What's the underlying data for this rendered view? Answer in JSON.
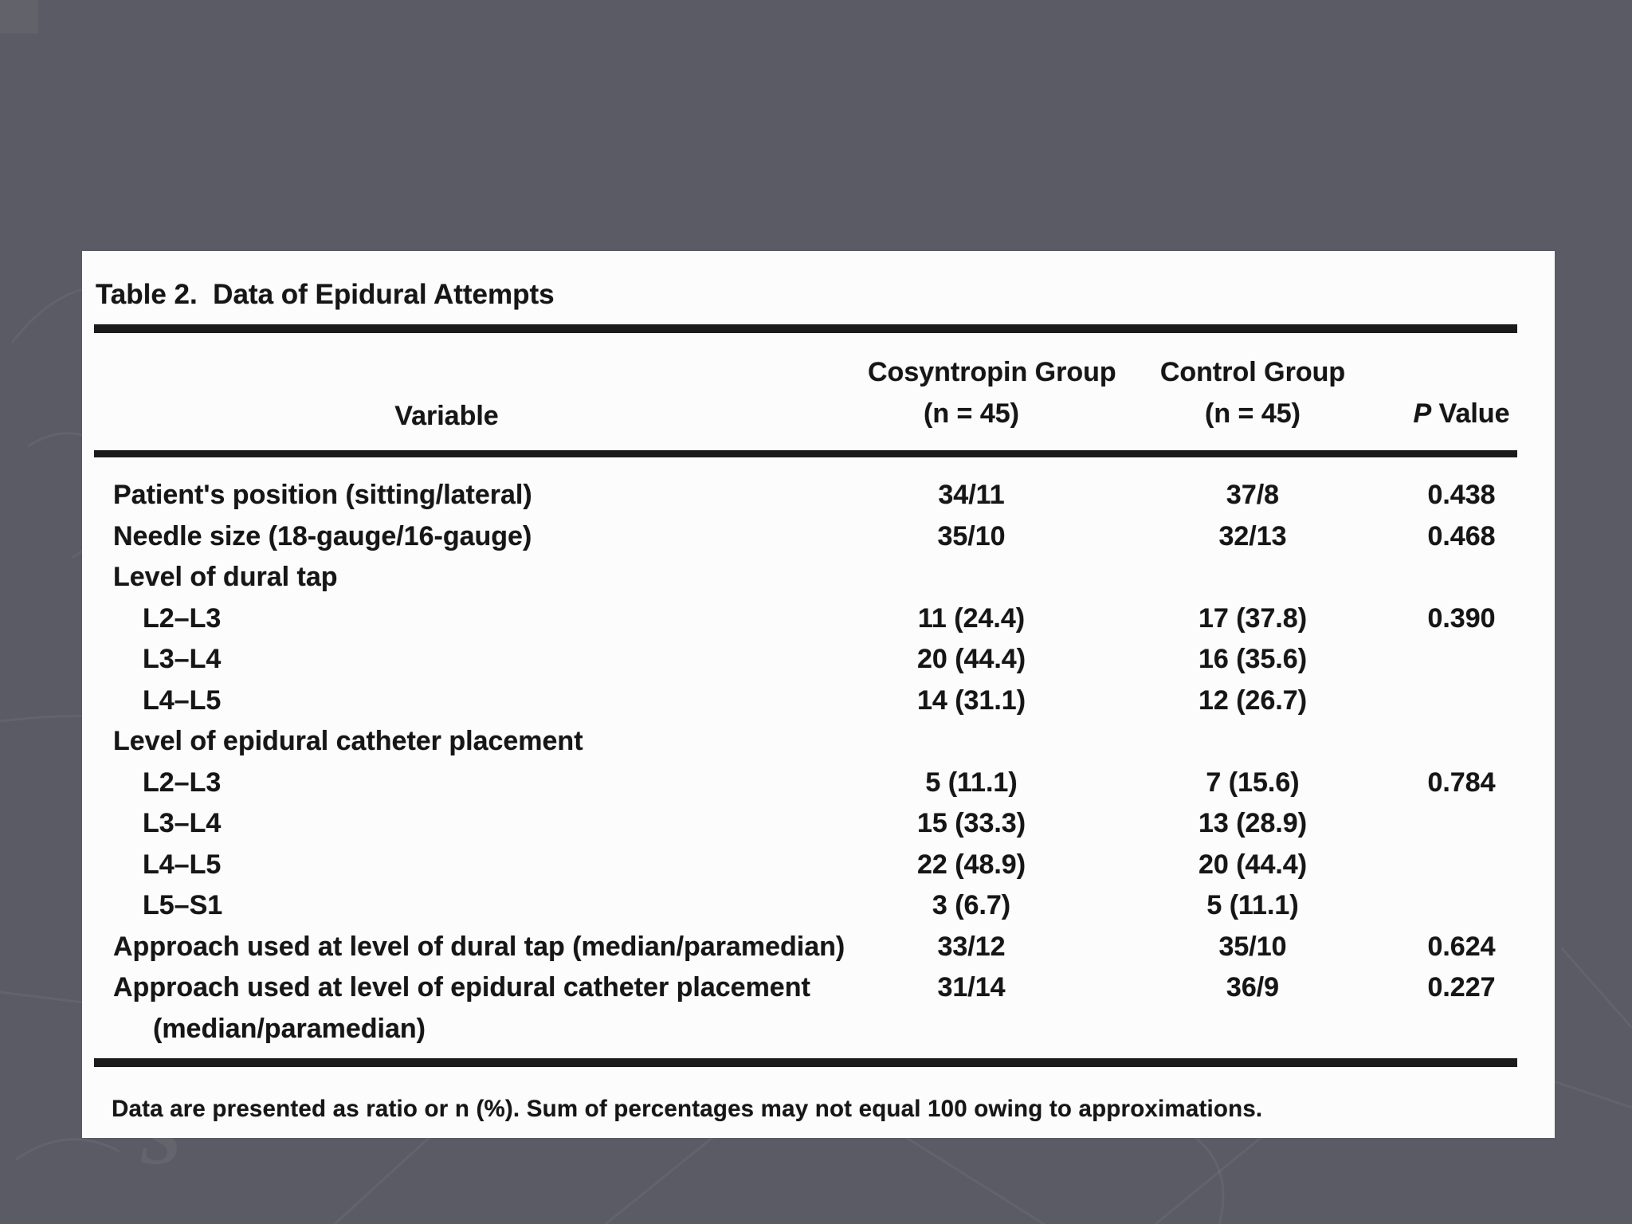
{
  "page": {
    "background_color": "#5a5b64",
    "panel_color": "#fcfcfd",
    "text_color": "#161616",
    "rule_color": "#1b1b1b"
  },
  "table": {
    "title": "Table 2.  Data of Epidural Attempts",
    "header": {
      "variable": "Variable",
      "group1_line1": "Cosyntropin Group",
      "group1_line2": "(n = 45)",
      "group2_line1": "Control Group",
      "group2_line2": "(n = 45)",
      "p_italic": "P",
      "p_rest": " Value"
    },
    "rows": [
      {
        "label": "Patient's position (sitting/lateral)",
        "indent": 0,
        "cosyntropin": "34/11",
        "control": "37/8",
        "p": "0.438"
      },
      {
        "label": "Needle size (18-gauge/16-gauge)",
        "indent": 0,
        "cosyntropin": "35/10",
        "control": "32/13",
        "p": "0.468"
      },
      {
        "label": "Level of dural tap",
        "indent": 0,
        "cosyntropin": "",
        "control": "",
        "p": ""
      },
      {
        "label": "L2–L3",
        "indent": 1,
        "cosyntropin": "11 (24.4)",
        "control": "17 (37.8)",
        "p": "0.390"
      },
      {
        "label": "L3–L4",
        "indent": 1,
        "cosyntropin": "20 (44.4)",
        "control": "16 (35.6)",
        "p": ""
      },
      {
        "label": "L4–L5",
        "indent": 1,
        "cosyntropin": "14 (31.1)",
        "control": "12 (26.7)",
        "p": ""
      },
      {
        "label": "Level of epidural catheter placement",
        "indent": 0,
        "cosyntropin": "",
        "control": "",
        "p": ""
      },
      {
        "label": "L2–L3",
        "indent": 1,
        "cosyntropin": "5 (11.1)",
        "control": "7 (15.6)",
        "p": "0.784"
      },
      {
        "label": "L3–L4",
        "indent": 1,
        "cosyntropin": "15 (33.3)",
        "control": "13 (28.9)",
        "p": ""
      },
      {
        "label": "L4–L5",
        "indent": 1,
        "cosyntropin": "22 (48.9)",
        "control": "20 (44.4)",
        "p": ""
      },
      {
        "label": "L5–S1",
        "indent": 1,
        "cosyntropin": "3 (6.7)",
        "control": "5 (11.1)",
        "p": ""
      },
      {
        "label": "Approach used at level of dural tap (median/paramedian)",
        "indent": 0,
        "cosyntropin": "33/12",
        "control": "35/10",
        "p": "0.624"
      },
      {
        "label": "Approach used at level of epidural catheter placement",
        "indent": 0,
        "cosyntropin": "31/14",
        "control": "36/9",
        "p": "0.227"
      },
      {
        "label": "(median/paramedian)",
        "indent": 2,
        "cosyntropin": "",
        "control": "",
        "p": ""
      }
    ],
    "footnote": "Data are presented as ratio or n (%). Sum of percentages may not equal 100 owing to approximations."
  }
}
